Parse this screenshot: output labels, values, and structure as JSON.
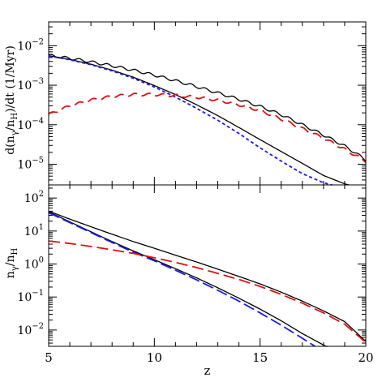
{
  "chart_data": [
    {
      "type": "line",
      "panel": "top",
      "xlim": [
        5,
        20
      ],
      "yscale": "log",
      "ylim": [
        3e-06,
        0.04
      ],
      "ytick_values": [
        1e-05,
        0.0001,
        0.001,
        0.01
      ],
      "ytick_labels": [
        {
          "base": "10",
          "exp": "−5"
        },
        {
          "base": "10",
          "exp": "−4"
        },
        {
          "base": "10",
          "exp": "−3"
        },
        {
          "base": "10",
          "exp": "−2"
        }
      ],
      "ylabel": {
        "pre": "d(n",
        "s1": "γ",
        "mid": "/n",
        "s2": "H",
        "post": ")/dt  (1/Myr)"
      },
      "grid": false,
      "series": [
        {
          "color": "#000000",
          "dash": "solid",
          "wiggle": true,
          "x": [
            5,
            6,
            7,
            8,
            9,
            10,
            11,
            12,
            13,
            14,
            15,
            16,
            17,
            18,
            19,
            20
          ],
          "y": [
            0.0057,
            0.0048,
            0.0039,
            0.0031,
            0.0024,
            0.0018,
            0.0013,
            0.00092,
            0.00064,
            0.00044,
            0.00029,
            0.00018,
            0.0001,
            5.5e-05,
            2.9e-05,
            1.3e-05
          ]
        },
        {
          "color": "#000000",
          "dash": "solid",
          "wiggle": false,
          "x": [
            5,
            6,
            7,
            8,
            9,
            10,
            11,
            12,
            13,
            14,
            15,
            16,
            17,
            18,
            19,
            19.2
          ],
          "y": [
            0.0056,
            0.0045,
            0.0034,
            0.0024,
            0.0016,
            0.00098,
            0.00058,
            0.00032,
            0.00017,
            8.5e-05,
            4.2e-05,
            2.1e-05,
            1.05e-05,
            5.2e-06,
            3.2e-06,
            3e-06
          ]
        },
        {
          "color": "#1a1aee",
          "dash": "4,3",
          "wiggle": false,
          "x": [
            5,
            6,
            7,
            8,
            9,
            10,
            11,
            12,
            13,
            14,
            15,
            16,
            17,
            18,
            18.4
          ],
          "y": [
            0.0055,
            0.0044,
            0.0033,
            0.0023,
            0.0015,
            0.0009,
            0.0005,
            0.00026,
            0.00013,
            6e-05,
            2.6e-05,
            1.2e-05,
            5.8e-06,
            3.4e-06,
            3e-06
          ]
        },
        {
          "color": "#e01010",
          "dash": "12,6",
          "wiggle": true,
          "x": [
            5,
            6,
            7,
            8,
            9,
            10,
            11,
            12,
            13,
            14,
            15,
            16,
            17,
            18,
            19,
            20
          ],
          "y": [
            0.00018,
            0.0003,
            0.00042,
            0.00052,
            0.00058,
            0.00058,
            0.00055,
            0.0005,
            0.00042,
            0.00032,
            0.00023,
            0.00014,
            8e-05,
            4.6e-05,
            2.4e-05,
            1.2e-05
          ]
        }
      ]
    },
    {
      "type": "line",
      "panel": "bottom",
      "xlim": [
        5,
        20
      ],
      "yscale": "log",
      "ylim": [
        0.0032,
        250
      ],
      "xtick_values": [
        5,
        10,
        15,
        20
      ],
      "xtick_labels": [
        "5",
        "10",
        "15",
        "20"
      ],
      "xlabel": "z",
      "ytick_values": [
        0.01,
        0.1,
        1,
        10,
        100
      ],
      "ytick_labels": [
        {
          "base": "10",
          "exp": "−2"
        },
        {
          "base": "10",
          "exp": "−1"
        },
        {
          "base": "10",
          "exp": "0"
        },
        {
          "base": "10",
          "exp": "1"
        },
        {
          "base": "10",
          "exp": "2"
        }
      ],
      "ylabel": {
        "pre": "n",
        "s1": "γ",
        "mid": "/n",
        "s2": "H",
        "post": ""
      },
      "grid": false,
      "series": [
        {
          "color": "#000000",
          "dash": "solid",
          "wiggle": false,
          "x": [
            5,
            6,
            7,
            8,
            9,
            10,
            11,
            12,
            13,
            14,
            15,
            16,
            17,
            18,
            19,
            20
          ],
          "y": [
            40,
            23,
            13.5,
            8.0,
            4.8,
            3.0,
            1.85,
            1.15,
            0.7,
            0.42,
            0.25,
            0.14,
            0.075,
            0.038,
            0.018,
            0.0045
          ]
        },
        {
          "color": "#000000",
          "dash": "solid",
          "wiggle": false,
          "x": [
            5,
            6,
            7,
            8,
            9,
            10,
            11,
            12,
            13,
            14,
            15,
            16,
            17,
            18,
            18.2
          ],
          "y": [
            38,
            19,
            9.5,
            4.8,
            2.5,
            1.35,
            0.72,
            0.38,
            0.19,
            0.092,
            0.043,
            0.019,
            0.0078,
            0.0035,
            0.003
          ]
        },
        {
          "color": "#1a1aee",
          "dash": "14,5",
          "wiggle": false,
          "x": [
            5,
            6,
            7,
            8,
            9,
            10,
            11,
            12,
            13,
            14,
            15,
            16,
            17,
            17.6
          ],
          "y": [
            36,
            18,
            9.0,
            4.5,
            2.3,
            1.25,
            0.65,
            0.33,
            0.16,
            0.075,
            0.033,
            0.014,
            0.0056,
            0.0032
          ]
        },
        {
          "color": "#e01010",
          "dash": "14,6",
          "wiggle": false,
          "x": [
            5,
            6,
            7,
            8,
            9,
            10,
            11,
            12,
            13,
            14,
            15,
            16,
            17,
            18,
            19,
            20
          ],
          "y": [
            5.0,
            4.2,
            3.4,
            2.7,
            2.1,
            1.55,
            1.12,
            0.78,
            0.52,
            0.34,
            0.21,
            0.12,
            0.065,
            0.033,
            0.015,
            0.0042
          ]
        }
      ]
    }
  ]
}
